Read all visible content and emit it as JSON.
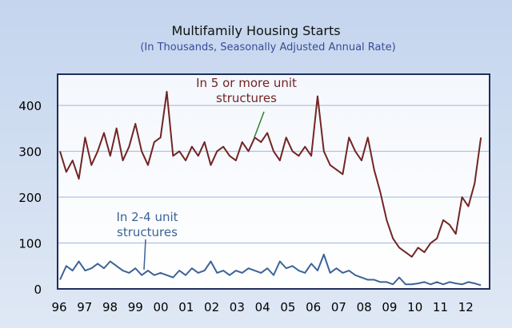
{
  "chart_data": {
    "type": "line",
    "title": "Multifamily Housing Starts",
    "subtitle": "(In Thousands, Seasonally Adjusted Annual Rate)",
    "xlabel": "",
    "ylabel": "",
    "ylim": [
      0,
      468
    ],
    "yticks": [
      0,
      100,
      200,
      300,
      400
    ],
    "xticks": [
      "96",
      "97",
      "98",
      "99",
      "00",
      "01",
      "02",
      "03",
      "04",
      "05",
      "06",
      "07",
      "08",
      "09",
      "10",
      "11",
      "12"
    ],
    "x_start_year": 1996,
    "periods_per_year": 4,
    "grid": true,
    "colors": {
      "five_plus": "#722524",
      "two_four": "#3b6397",
      "grid": "#9fb6d9",
      "border": "#1f2f5a"
    },
    "series": [
      {
        "name": "In 5 or more unit structures",
        "values": [
          300,
          255,
          280,
          240,
          330,
          270,
          300,
          340,
          290,
          350,
          280,
          310,
          360,
          300,
          270,
          320,
          330,
          430,
          290,
          300,
          280,
          310,
          290,
          320,
          270,
          300,
          310,
          290,
          280,
          320,
          300,
          330,
          320,
          340,
          300,
          280,
          330,
          300,
          290,
          310,
          290,
          420,
          300,
          270,
          260,
          250,
          330,
          300,
          280,
          330,
          260,
          210,
          150,
          110,
          90,
          80,
          70,
          90,
          80,
          100,
          110,
          150,
          140,
          120,
          200,
          180,
          230,
          330
        ]
      },
      {
        "name": "In 2-4 unit structures",
        "values": [
          20,
          50,
          40,
          60,
          40,
          45,
          55,
          45,
          60,
          50,
          40,
          35,
          45,
          30,
          40,
          30,
          35,
          30,
          25,
          40,
          30,
          45,
          35,
          40,
          60,
          35,
          40,
          30,
          40,
          35,
          45,
          40,
          35,
          45,
          30,
          60,
          45,
          50,
          40,
          35,
          55,
          40,
          75,
          35,
          45,
          35,
          40,
          30,
          25,
          20,
          20,
          15,
          15,
          10,
          25,
          10,
          10,
          12,
          15,
          10,
          15,
          10,
          15,
          12,
          10,
          15,
          12,
          8
        ]
      }
    ],
    "annotations": [
      "In 5 or more unit",
      "structures",
      "In 2-4 unit",
      "structures"
    ]
  }
}
